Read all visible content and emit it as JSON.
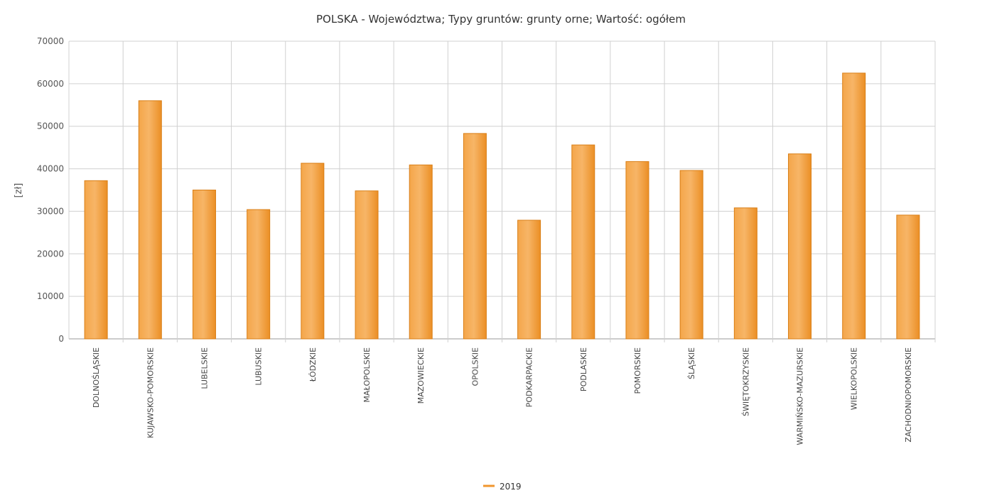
{
  "chart_data": {
    "type": "bar",
    "title": "POLSKA - Województwa; Typy gruntów: grunty orne; Wartość: ogółem",
    "xlabel": "",
    "ylabel": "[zł]",
    "ylim": [
      0,
      70000
    ],
    "yticks": [
      0,
      10000,
      20000,
      30000,
      40000,
      50000,
      60000,
      70000
    ],
    "grid": true,
    "legend_position": "bottom",
    "categories": [
      "DOLNOŚLĄSKIE",
      "KUJAWSKO-POMORSKIE",
      "LUBELSKIE",
      "LUBUSKIE",
      "ŁÓDZKIE",
      "MAŁOPOLSKIE",
      "MAZOWIECKIE",
      "OPOLSKIE",
      "PODKARPACKIE",
      "PODLASKIE",
      "POMORSKIE",
      "ŚLĄSKIE",
      "ŚWIĘTOKRZYSKIE",
      "WARMIŃSKO-MAZURSKIE",
      "WIELKOPOLSKIE",
      "ZACHODNIOPOMORSKIE"
    ],
    "series": [
      {
        "name": "2019",
        "color": "#f0962e",
        "values": [
          37200,
          56000,
          35000,
          30400,
          41300,
          34800,
          40900,
          48300,
          27900,
          45600,
          41700,
          39600,
          30800,
          43500,
          62500,
          29100
        ]
      }
    ]
  }
}
